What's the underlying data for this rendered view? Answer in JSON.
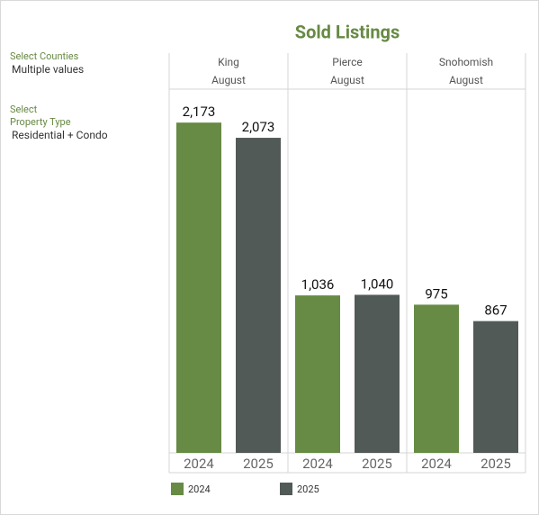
{
  "filters": [
    {
      "label_lines": [
        "Select Counties"
      ],
      "value": "Multiple values"
    },
    {
      "label_lines": [
        "Select",
        "Property Type"
      ],
      "value": "Residential + Condo"
    }
  ],
  "chart_data": {
    "type": "bar",
    "title": "Sold Listings",
    "categories": [
      "King",
      "Pierce",
      "Snohomish"
    ],
    "periods": [
      "August",
      "August",
      "August"
    ],
    "series": [
      {
        "name": "2024",
        "color": "#678a44",
        "values": [
          2173,
          1036,
          975
        ],
        "value_labels": [
          "2,173",
          "1,036",
          "975"
        ]
      },
      {
        "name": "2025",
        "color": "#525a58",
        "values": [
          2073,
          1040,
          867
        ],
        "value_labels": [
          "2,073",
          "1,040",
          "867"
        ]
      }
    ]
  }
}
